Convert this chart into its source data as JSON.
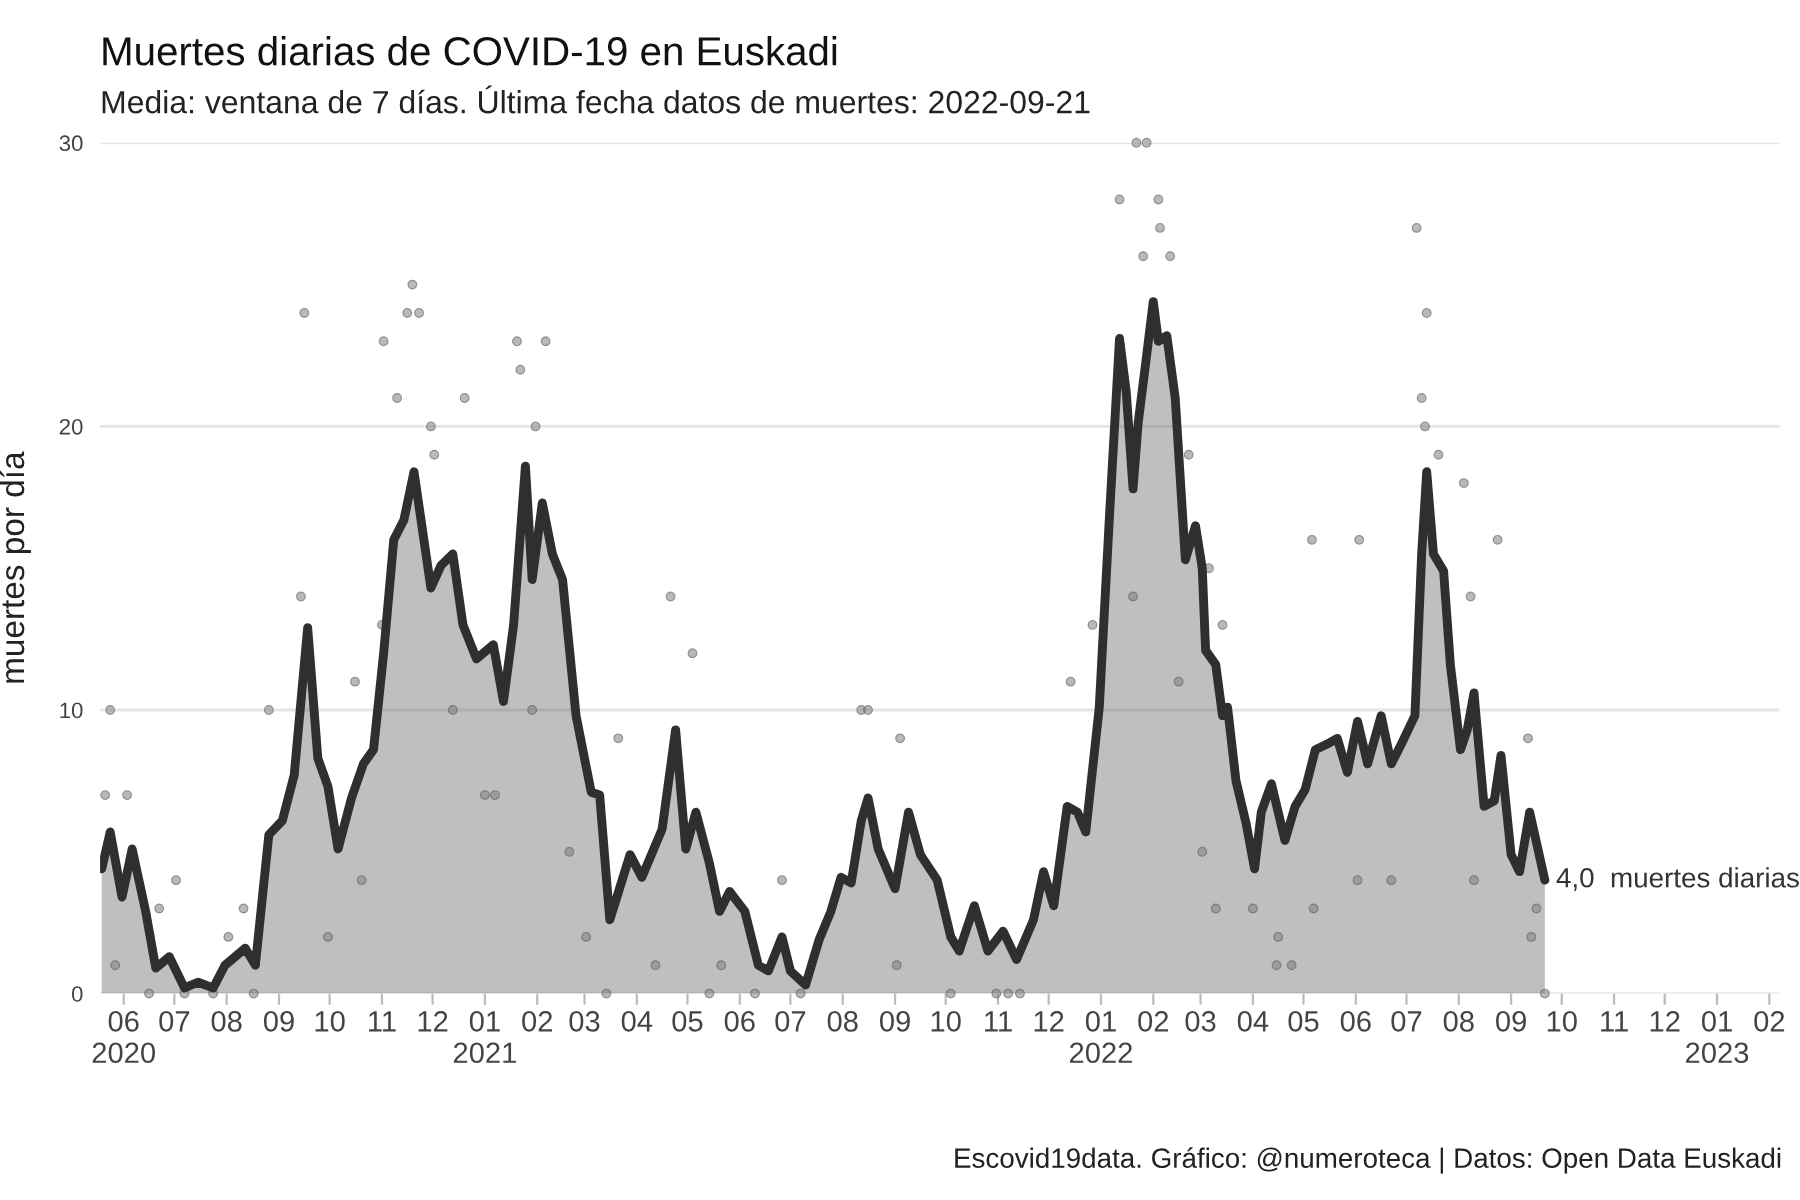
{
  "chart_data": {
    "type": "area",
    "title": "Muertes diarias de COVID-19 en Euskadi",
    "subtitle": "Media: ventana de 7 días. Última fecha datos de muertes: 2022-09-21",
    "ylabel": "muertes por día",
    "annotations": [
      {
        "text": "4,0  muertes diarias",
        "x": "2022-09-21",
        "y": 4.0
      },
      "Escovid19data. Gráfico: @numeroteca | Datos: Open Data Euskadi"
    ],
    "xlim": [
      "2020-05-18",
      "2023-02-07"
    ],
    "xticks": [
      {
        "value": "2020-06-01",
        "label": "06\n2020"
      },
      {
        "value": "2020-07-01",
        "label": "07"
      },
      {
        "value": "2020-08-01",
        "label": "08"
      },
      {
        "value": "2020-09-01",
        "label": "09"
      },
      {
        "value": "2020-10-01",
        "label": "10"
      },
      {
        "value": "2020-11-01",
        "label": "11"
      },
      {
        "value": "2020-12-01",
        "label": "12"
      },
      {
        "value": "2021-01-01",
        "label": "01\n2021"
      },
      {
        "value": "2021-02-01",
        "label": "02"
      },
      {
        "value": "2021-03-01",
        "label": "03"
      },
      {
        "value": "2021-04-01",
        "label": "04"
      },
      {
        "value": "2021-05-01",
        "label": "05"
      },
      {
        "value": "2021-06-01",
        "label": "06"
      },
      {
        "value": "2021-07-01",
        "label": "07"
      },
      {
        "value": "2021-08-01",
        "label": "08"
      },
      {
        "value": "2021-09-01",
        "label": "09"
      },
      {
        "value": "2021-10-01",
        "label": "10"
      },
      {
        "value": "2021-11-01",
        "label": "11"
      },
      {
        "value": "2021-12-01",
        "label": "12"
      },
      {
        "value": "2022-01-01",
        "label": "01\n2022"
      },
      {
        "value": "2022-02-01",
        "label": "02"
      },
      {
        "value": "2022-03-01",
        "label": "03"
      },
      {
        "value": "2022-04-01",
        "label": "04"
      },
      {
        "value": "2022-05-01",
        "label": "05"
      },
      {
        "value": "2022-06-01",
        "label": "06"
      },
      {
        "value": "2022-07-01",
        "label": "07"
      },
      {
        "value": "2022-08-01",
        "label": "08"
      },
      {
        "value": "2022-09-01",
        "label": "09"
      },
      {
        "value": "2022-10-01",
        "label": "10"
      },
      {
        "value": "2022-11-01",
        "label": "11"
      },
      {
        "value": "2022-12-01",
        "label": "12"
      },
      {
        "value": "2023-01-01",
        "label": "01\n2023"
      },
      {
        "value": "2023-02-01",
        "label": "02"
      }
    ],
    "ylim": [
      0,
      30
    ],
    "yticks": [
      0,
      10,
      20,
      30
    ],
    "grid": "y",
    "legend": false,
    "series": [
      {
        "color": "#2f2f2f",
        "x": [
          "2020-05-19",
          "2020-05-24",
          "2020-05-31",
          "2020-06-06",
          "2020-06-14",
          "2020-06-20",
          "2020-06-28",
          "2020-07-07",
          "2020-07-15",
          "2020-07-24",
          "2020-07-31",
          "2020-08-12",
          "2020-08-18",
          "2020-08-26",
          "2020-09-03",
          "2020-09-10",
          "2020-09-18",
          "2020-09-24",
          "2020-09-30",
          "2020-10-06",
          "2020-10-14",
          "2020-10-21",
          "2020-10-27",
          "2020-11-02",
          "2020-11-08",
          "2020-11-14",
          "2020-11-20",
          "2020-11-30",
          "2020-12-06",
          "2020-12-13",
          "2020-12-19",
          "2020-12-27",
          "2021-01-06",
          "2021-01-12",
          "2021-01-18",
          "2021-01-25",
          "2021-01-29",
          "2021-02-04",
          "2021-02-10",
          "2021-02-16",
          "2021-02-24",
          "2021-03-05",
          "2021-03-10",
          "2021-03-16",
          "2021-03-28",
          "2021-04-04",
          "2021-04-16",
          "2021-04-24",
          "2021-04-30",
          "2021-05-06",
          "2021-05-14",
          "2021-05-20",
          "2021-05-26",
          "2021-06-04",
          "2021-06-12",
          "2021-06-18",
          "2021-06-26",
          "2021-07-01",
          "2021-07-10",
          "2021-07-18",
          "2021-07-25",
          "2021-07-31",
          "2021-08-06",
          "2021-08-12",
          "2021-08-16",
          "2021-08-22",
          "2021-09-01",
          "2021-09-09",
          "2021-09-16",
          "2021-09-26",
          "2021-10-04",
          "2021-10-09",
          "2021-10-18",
          "2021-10-26",
          "2021-11-04",
          "2021-11-12",
          "2021-11-22",
          "2021-11-28",
          "2021-12-04",
          "2021-12-12",
          "2021-12-18",
          "2021-12-23",
          "2021-12-31",
          "2022-01-06",
          "2022-01-12",
          "2022-01-16",
          "2022-01-20",
          "2022-01-23",
          "2022-01-27",
          "2022-02-01",
          "2022-02-04",
          "2022-02-09",
          "2022-02-14",
          "2022-02-20",
          "2022-02-26",
          "2022-03-02",
          "2022-03-04",
          "2022-03-10",
          "2022-03-14",
          "2022-03-17",
          "2022-03-22",
          "2022-03-28",
          "2022-04-02",
          "2022-04-06",
          "2022-04-12",
          "2022-04-20",
          "2022-04-26",
          "2022-05-02",
          "2022-05-08",
          "2022-05-15",
          "2022-05-21",
          "2022-05-27",
          "2022-06-02",
          "2022-06-08",
          "2022-06-16",
          "2022-06-22",
          "2022-06-28",
          "2022-07-06",
          "2022-07-10",
          "2022-07-13",
          "2022-07-17",
          "2022-07-23",
          "2022-07-27",
          "2022-08-02",
          "2022-08-06",
          "2022-08-10",
          "2022-08-16",
          "2022-08-22",
          "2022-08-26",
          "2022-09-01",
          "2022-09-06",
          "2022-09-12",
          "2022-09-21"
        ],
        "values": [
          4.4,
          5.7,
          3.4,
          5.1,
          2.9,
          0.9,
          1.3,
          0.2,
          0.4,
          0.2,
          1.0,
          1.6,
          1.0,
          5.6,
          6.1,
          7.7,
          12.9,
          8.3,
          7.3,
          5.1,
          6.9,
          8.1,
          8.6,
          12.0,
          16.0,
          16.7,
          18.4,
          14.3,
          15.1,
          15.5,
          13.0,
          11.8,
          12.3,
          10.3,
          13.0,
          18.6,
          14.6,
          17.3,
          15.5,
          14.6,
          9.8,
          7.1,
          7.0,
          2.6,
          4.9,
          4.1,
          5.8,
          9.3,
          5.1,
          6.4,
          4.6,
          2.9,
          3.6,
          2.9,
          1.0,
          0.8,
          2.0,
          0.8,
          0.3,
          1.9,
          2.9,
          4.1,
          3.9,
          6.1,
          6.9,
          5.1,
          3.7,
          6.4,
          4.9,
          4.0,
          2.0,
          1.5,
          3.1,
          1.5,
          2.2,
          1.2,
          2.6,
          4.3,
          3.1,
          6.6,
          6.4,
          5.7,
          10.1,
          16.8,
          23.1,
          21.2,
          17.8,
          20.1,
          22.0,
          24.4,
          23.0,
          23.2,
          21.0,
          15.3,
          16.5,
          15.0,
          12.1,
          11.6,
          9.8,
          10.1,
          7.5,
          6.0,
          4.4,
          6.4,
          7.4,
          5.4,
          6.6,
          7.2,
          8.6,
          8.8,
          9.0,
          7.8,
          9.6,
          8.1,
          9.8,
          8.1,
          8.8,
          9.8,
          15.5,
          18.4,
          15.5,
          14.9,
          11.6,
          8.6,
          9.3,
          10.6,
          6.6,
          6.8,
          8.4,
          4.9,
          4.3,
          6.4,
          4.0
        ]
      },
      {
        "type": "scatter",
        "color": "#7f7f7f",
        "x": [
          "2020-05-21",
          "2020-05-24",
          "2020-05-27",
          "2020-06-03",
          "2020-06-16",
          "2020-06-22",
          "2020-07-02",
          "2020-07-07",
          "2020-07-24",
          "2020-08-02",
          "2020-08-11",
          "2020-08-17",
          "2020-08-26",
          "2020-09-14",
          "2020-09-16",
          "2020-09-30",
          "2020-10-16",
          "2020-10-20",
          "2020-11-01",
          "2020-11-02",
          "2020-11-10",
          "2020-11-16",
          "2020-11-19",
          "2020-11-23",
          "2020-11-30",
          "2020-12-02",
          "2020-12-13",
          "2020-12-20",
          "2021-01-01",
          "2021-01-07",
          "2021-01-20",
          "2021-01-22",
          "2021-01-29",
          "2021-01-31",
          "2021-02-06",
          "2021-02-20",
          "2021-03-02",
          "2021-03-14",
          "2021-03-21",
          "2021-04-12",
          "2021-04-21",
          "2021-05-04",
          "2021-05-14",
          "2021-05-21",
          "2021-06-10",
          "2021-06-26",
          "2021-07-07",
          "2021-08-12",
          "2021-08-16",
          "2021-09-02",
          "2021-09-04",
          "2021-10-04",
          "2021-10-31",
          "2021-11-07",
          "2021-11-14",
          "2021-12-14",
          "2021-12-27",
          "2022-01-12",
          "2022-01-20",
          "2022-01-22",
          "2022-01-26",
          "2022-01-28",
          "2022-02-04",
          "2022-02-05",
          "2022-02-11",
          "2022-02-16",
          "2022-02-22",
          "2022-03-02",
          "2022-03-06",
          "2022-03-10",
          "2022-03-14",
          "2022-04-01",
          "2022-04-15",
          "2022-04-16",
          "2022-04-24",
          "2022-05-06",
          "2022-05-07",
          "2022-06-02",
          "2022-06-03",
          "2022-06-22",
          "2022-07-07",
          "2022-07-10",
          "2022-07-12",
          "2022-07-13",
          "2022-07-20",
          "2022-08-04",
          "2022-08-08",
          "2022-08-10",
          "2022-08-24",
          "2022-09-11",
          "2022-09-13",
          "2022-09-16",
          "2022-09-21"
        ],
        "values": [
          7,
          10,
          1,
          7,
          0,
          3,
          4,
          0,
          0,
          2,
          3,
          0,
          10,
          14,
          24,
          2,
          11,
          4,
          13,
          23,
          21,
          24,
          25,
          24,
          20,
          19,
          10,
          21,
          7,
          7,
          23,
          22,
          10,
          20,
          23,
          5,
          2,
          0,
          9,
          1,
          14,
          12,
          0,
          1,
          0,
          4,
          0,
          10,
          10,
          1,
          9,
          0,
          0,
          0,
          0,
          11,
          13,
          28,
          14,
          30,
          26,
          30,
          28,
          27,
          26,
          11,
          19,
          5,
          15,
          3,
          13,
          3,
          1,
          2,
          1,
          16,
          3,
          4,
          16,
          4,
          27,
          21,
          20,
          24,
          19,
          18,
          14,
          4,
          16,
          9,
          2,
          3,
          0
        ]
      }
    ]
  }
}
